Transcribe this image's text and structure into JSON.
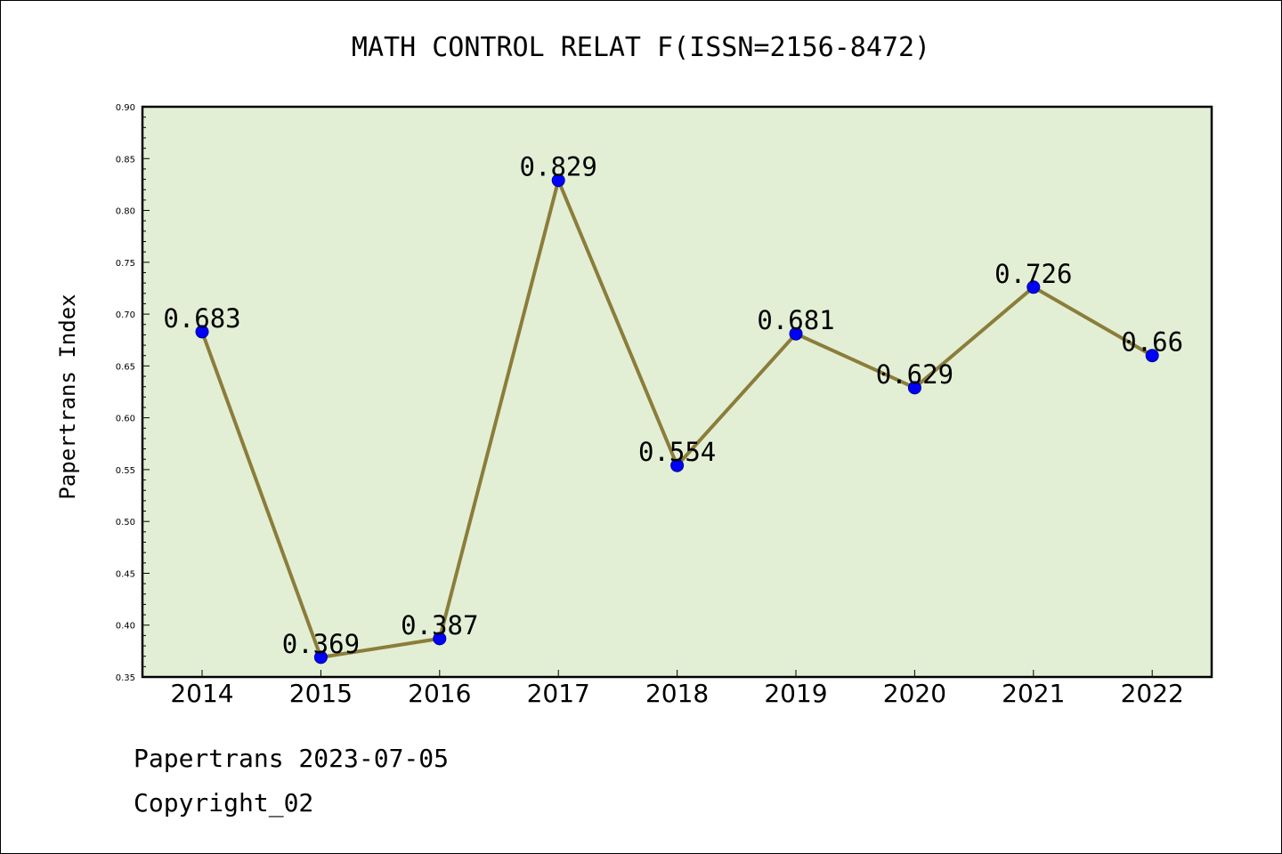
{
  "chart_data": {
    "type": "line",
    "title": "MATH CONTROL RELAT F(ISSN=2156-8472)",
    "xlabel": "",
    "ylabel": "Papertrans Index",
    "x": [
      "2014",
      "2015",
      "2016",
      "2017",
      "2018",
      "2019",
      "2020",
      "2021",
      "2022"
    ],
    "series": [
      {
        "values": [
          0.683,
          0.369,
          0.387,
          0.829,
          0.554,
          0.681,
          0.629,
          0.726,
          0.66
        ],
        "labels": [
          "0.683",
          "0.369",
          "0.387",
          "0.829",
          "0.554",
          "0.681",
          "0.629",
          "0.726",
          "0.66"
        ],
        "line_color": "#8b7d3a",
        "marker_color": "#0000ff"
      }
    ],
    "ylim": [
      0.35,
      0.9
    ],
    "yticks": [
      "0.35",
      "0.40",
      "0.45",
      "0.50",
      "0.55",
      "0.60",
      "0.65",
      "0.70",
      "0.75",
      "0.80",
      "0.85",
      "0.90"
    ],
    "grid": false,
    "plot_background": "#e2efd5"
  },
  "footer": {
    "line1": "Papertrans 2023-07-05",
    "line2": "Copyright_02"
  }
}
